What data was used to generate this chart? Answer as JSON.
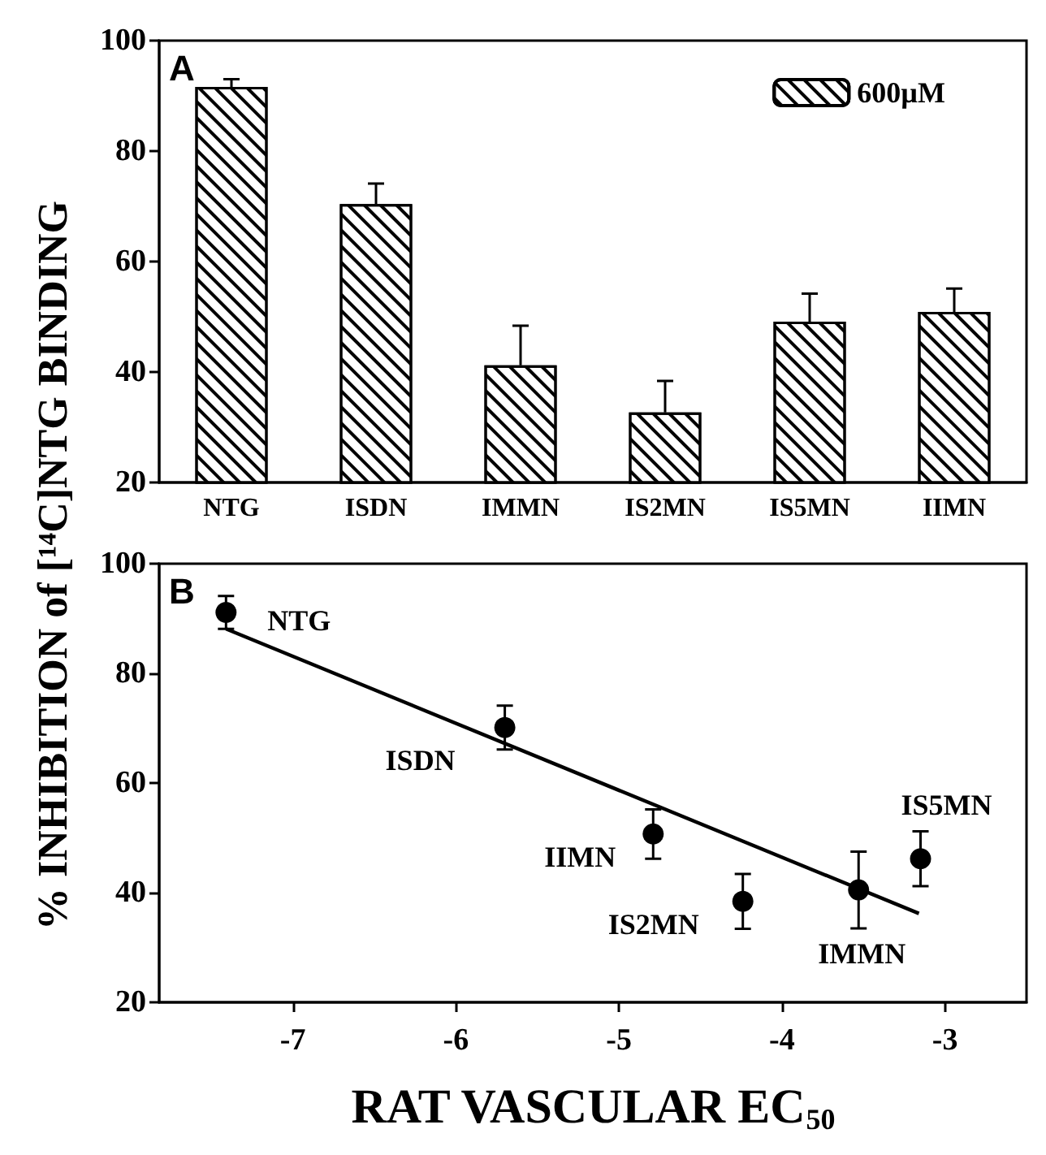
{
  "chart_data": [
    {
      "type": "bar",
      "ylabel": "% INHIBITION of [¹⁴C]NTG BINDING",
      "annotations": [
        "A"
      ],
      "categories": [
        "NTG",
        "ISDN",
        "IMMN",
        "IS2MN",
        "IS5MN",
        "IIMN"
      ],
      "series": [
        {
          "name": "600µM",
          "color": "#000000",
          "values": [
            91.6,
            70.4,
            41.2,
            32.7,
            49.1,
            50.9
          ],
          "errors": [
            [
              91.6,
              93
            ],
            [
              70.4,
              74.1
            ],
            [
              41.2,
              48.4
            ],
            [
              32.7,
              38.4
            ],
            [
              49.1,
              54.2
            ],
            [
              50.9,
              55.1
            ]
          ]
        }
      ],
      "ylim": [
        20,
        100
      ],
      "yticks": [
        20,
        40,
        60,
        80,
        100
      ],
      "legend": "top right"
    },
    {
      "type": "scatter",
      "xlabel": "RAT VASCULAR EC$_{50}$",
      "annotations": [
        "B",
        {
          "text": "NTG",
          "x": -7.41,
          "y": 91.1
        },
        {
          "text": "ISDN",
          "x": -5.7,
          "y": 70.1
        },
        {
          "text": "IIMN",
          "x": -4.79,
          "y": 50.7
        },
        {
          "text": "IS2MN",
          "x": -4.24,
          "y": 38.4
        },
        {
          "text": "IMMN",
          "x": -3.53,
          "y": 40.5
        },
        {
          "text": "IS5MN",
          "x": -3.15,
          "y": 46.2
        }
      ],
      "series": [
        {
          "color": "#000000",
          "marker": "circle",
          "x": [
            -7.41,
            -5.7,
            -4.79,
            -4.24,
            -3.53,
            -3.15
          ],
          "values": [
            91.1,
            70.1,
            50.7,
            38.4,
            40.5,
            46.2
          ],
          "errors": [
            3,
            4,
            4.5,
            5,
            7,
            5
          ]
        },
        {
          "type": "line",
          "color": "#000000",
          "marker": "none",
          "x": [
            -7.41,
            -3.16
          ],
          "values": [
            88.1,
            36.2
          ]
        }
      ],
      "xlim": [
        -7.82,
        -2.5
      ],
      "xticks": [
        -7,
        -6,
        -5,
        -4,
        -3
      ],
      "ylim": [
        20,
        100
      ],
      "yticks": [
        20,
        40,
        60,
        80,
        100
      ]
    }
  ]
}
